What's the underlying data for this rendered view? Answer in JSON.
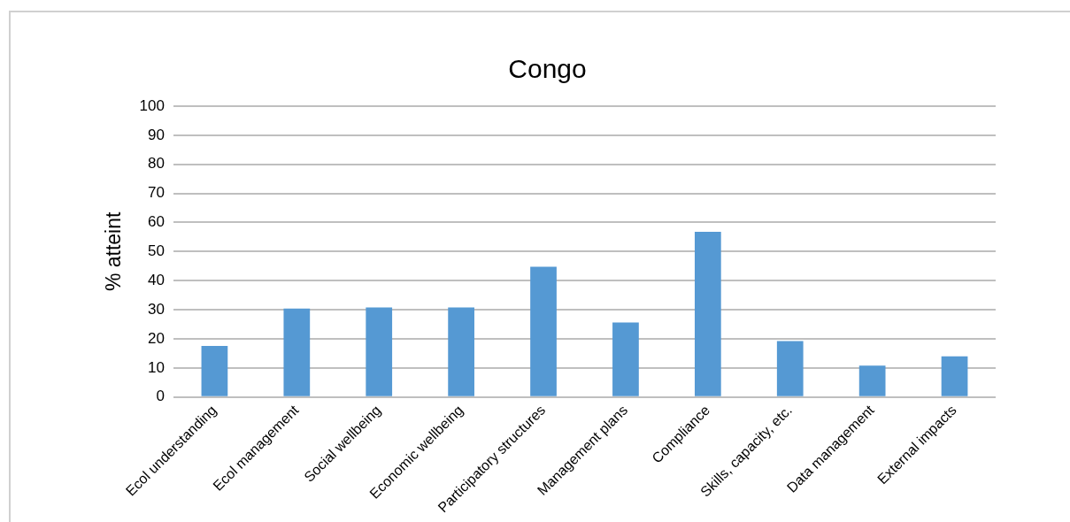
{
  "chart_data": {
    "type": "bar",
    "title": "Congo",
    "ylabel": "% atteint",
    "categories": [
      "Ecol understanding",
      "Ecol management",
      "Social wellbeing",
      "Economic wellbeing",
      "Participatory structures",
      "Management plans",
      "Compliance",
      "Skills, capacity, etc.",
      "Data management",
      "External impacts"
    ],
    "values": [
      17.6,
      30.4,
      30.8,
      30.8,
      44.8,
      25.6,
      56.8,
      19.2,
      10.8,
      14
    ],
    "color": "#5599d3",
    "ylim": [
      0,
      100
    ],
    "yticks": [
      0,
      10,
      20,
      30,
      40,
      50,
      60,
      70,
      80,
      90,
      100
    ],
    "grid": "y",
    "legend": false
  }
}
